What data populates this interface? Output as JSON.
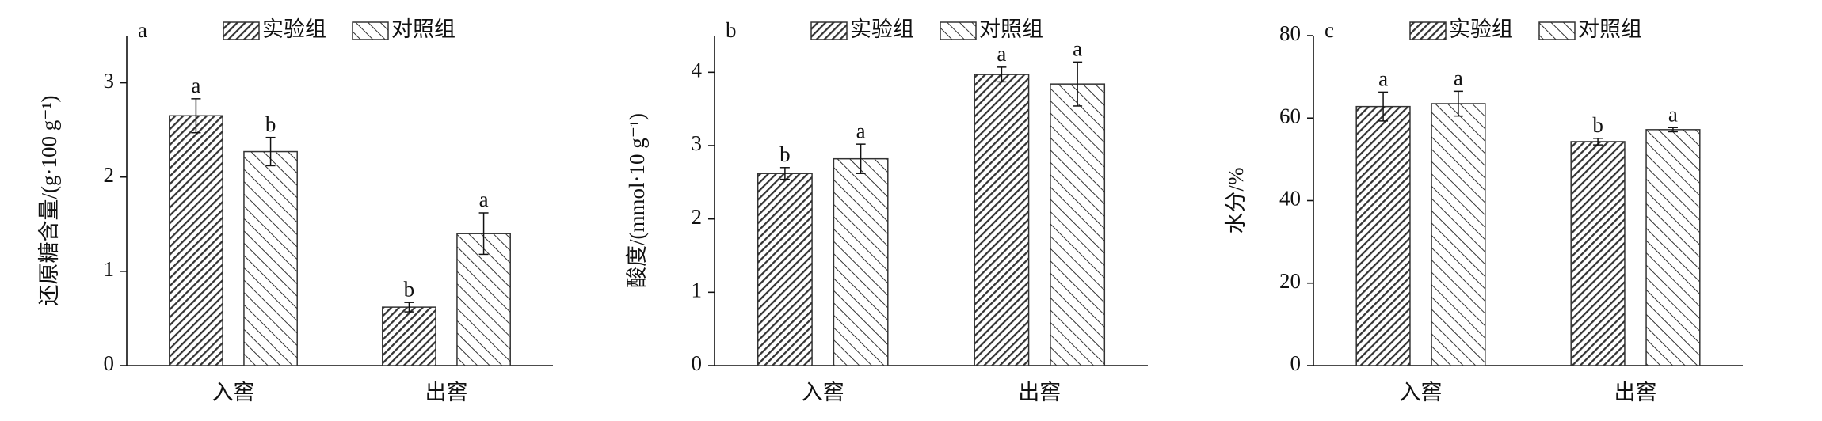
{
  "chart_data": [
    {
      "type": "bar",
      "panel_label": "a",
      "ylabel": "还原糖含量/(g·100 g⁻¹)",
      "categories": [
        "入窖",
        "出窖"
      ],
      "ylim": [
        0,
        3.5
      ],
      "yticks": [
        0,
        1,
        2,
        3
      ],
      "series": [
        {
          "name": "实验组",
          "hatch": "forward",
          "color": "#333333",
          "values": [
            2.65,
            0.62
          ],
          "errors": [
            0.18,
            0.05
          ],
          "letters": [
            "a",
            "b"
          ]
        },
        {
          "name": "对照组",
          "hatch": "back",
          "color": "#333333",
          "values": [
            2.27,
            1.4
          ],
          "errors": [
            0.15,
            0.22
          ],
          "letters": [
            "b",
            "a"
          ]
        }
      ]
    },
    {
      "type": "bar",
      "panel_label": "b",
      "ylabel": "酸度/(mmol·10 g⁻¹)",
      "categories": [
        "入窖",
        "出窖"
      ],
      "ylim": [
        0,
        4.5
      ],
      "yticks": [
        0,
        1,
        2,
        3,
        4
      ],
      "series": [
        {
          "name": "实验组",
          "hatch": "forward",
          "color": "#333333",
          "values": [
            2.62,
            3.97
          ],
          "errors": [
            0.08,
            0.1
          ],
          "letters": [
            "b",
            "a"
          ]
        },
        {
          "name": "对照组",
          "hatch": "back",
          "color": "#333333",
          "values": [
            2.82,
            3.84
          ],
          "errors": [
            0.2,
            0.3
          ],
          "letters": [
            "a",
            "a"
          ]
        }
      ]
    },
    {
      "type": "bar",
      "panel_label": "c",
      "ylabel": "水分/%",
      "categories": [
        "入窖",
        "出窖"
      ],
      "ylim": [
        0,
        80
      ],
      "yticks": [
        0,
        20,
        40,
        60,
        80
      ],
      "series": [
        {
          "name": "实验组",
          "hatch": "forward",
          "color": "#333333",
          "values": [
            62.8,
            54.3
          ],
          "errors": [
            3.5,
            0.8
          ],
          "letters": [
            "a",
            "b"
          ]
        },
        {
          "name": "对照组",
          "hatch": "back",
          "color": "#333333",
          "values": [
            63.5,
            57.2
          ],
          "errors": [
            3,
            0.5
          ],
          "letters": [
            "a",
            "a"
          ]
        }
      ]
    }
  ]
}
